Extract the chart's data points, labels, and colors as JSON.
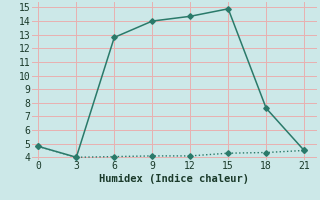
{
  "xlabel": "Humidex (Indice chaleur)",
  "background_color": "#cce8e8",
  "grid_color": "#e8b0b0",
  "line_color": "#2a7a6a",
  "series1_x": [
    0,
    3,
    6,
    9,
    12,
    15,
    18,
    21
  ],
  "series1_y": [
    4.8,
    4.0,
    12.8,
    14.0,
    14.35,
    14.9,
    7.6,
    4.5
  ],
  "series2_x": [
    0,
    3,
    6,
    9,
    12,
    15,
    18,
    21
  ],
  "series2_y": [
    4.8,
    4.0,
    4.05,
    4.1,
    4.1,
    4.3,
    4.35,
    4.5
  ],
  "xlim": [
    -0.5,
    22
  ],
  "ylim": [
    3.8,
    15.4
  ],
  "xticks": [
    0,
    3,
    6,
    9,
    12,
    15,
    18,
    21
  ],
  "yticks": [
    4,
    5,
    6,
    7,
    8,
    9,
    10,
    11,
    12,
    13,
    14,
    15
  ],
  "markersize": 2.8,
  "linewidth1": 1.1,
  "linewidth2": 1.0
}
